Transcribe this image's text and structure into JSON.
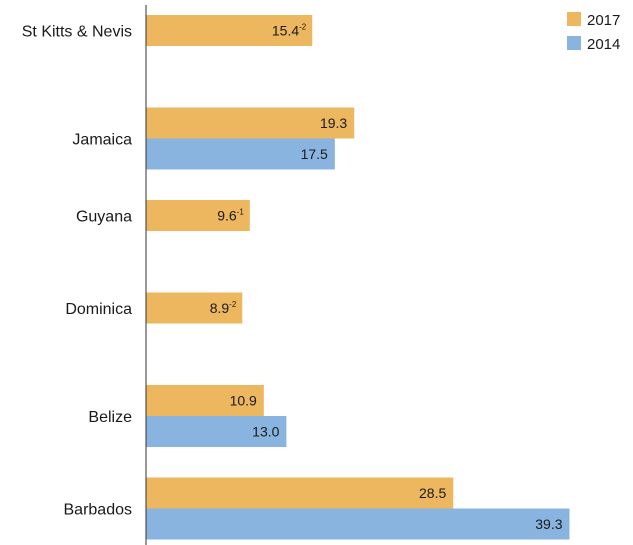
{
  "chart_data": {
    "type": "bar",
    "orientation": "horizontal",
    "categories": [
      "St Kitts & Nevis",
      "Jamaica",
      "Guyana",
      "Dominica",
      "Belize",
      "Barbados"
    ],
    "series": [
      {
        "name": "2017",
        "color": "#ecb75f",
        "values": [
          15.4,
          19.3,
          9.6,
          8.9,
          10.9,
          28.5
        ],
        "labels": [
          "15.4",
          "19.3",
          "9.6",
          "8.9",
          "10.9",
          "28.5"
        ],
        "superscripts": [
          "-2",
          "",
          "-1",
          "-2",
          "",
          ""
        ]
      },
      {
        "name": "2014",
        "color": "#8ab4e0",
        "values": [
          null,
          17.5,
          null,
          null,
          13.0,
          39.3
        ],
        "labels": [
          "",
          "17.5",
          "",
          "",
          "13.0",
          "39.3"
        ],
        "superscripts": [
          "",
          "",
          "",
          "",
          "",
          ""
        ]
      }
    ],
    "xlim": [
      0,
      41.5
    ],
    "grid": false,
    "legend_position": "top-right"
  }
}
